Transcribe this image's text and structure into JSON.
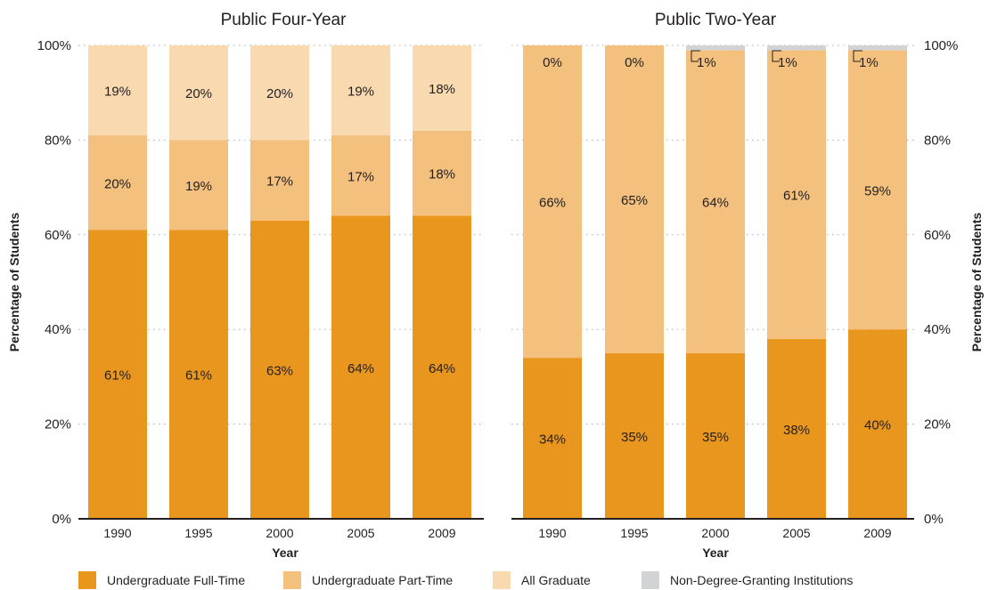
{
  "chart_data": [
    {
      "type": "bar",
      "stacked": true,
      "title": "Public Four-Year",
      "xlabel": "Year",
      "ylabel": "Percentage of Students",
      "ylim": [
        0,
        100
      ],
      "ytick_labels": [
        "0%",
        "20%",
        "40%",
        "60%",
        "80%",
        "100%"
      ],
      "categories": [
        "1990",
        "1995",
        "2000",
        "2005",
        "2009"
      ],
      "grid": true,
      "series": [
        {
          "name": "Undergraduate Full-Time",
          "values": [
            61,
            61,
            63,
            64,
            64
          ],
          "labels": [
            "61%",
            "61%",
            "63%",
            "64%",
            "64%"
          ]
        },
        {
          "name": "Undergraduate Part-Time",
          "values": [
            20,
            19,
            17,
            17,
            18
          ],
          "labels": [
            "20%",
            "19%",
            "17%",
            "17%",
            "18%"
          ]
        },
        {
          "name": "All Graduate",
          "values": [
            19,
            20,
            20,
            19,
            18
          ],
          "labels": [
            "19%",
            "20%",
            "20%",
            "19%",
            "18%"
          ]
        }
      ]
    },
    {
      "type": "bar",
      "stacked": true,
      "title": "Public Two-Year",
      "xlabel": "Year",
      "ylabel": "Percentage of Students",
      "ylim": [
        0,
        100
      ],
      "ytick_labels": [
        "0%",
        "20%",
        "40%",
        "60%",
        "80%",
        "100%"
      ],
      "categories": [
        "1990",
        "1995",
        "2000",
        "2005",
        "2009"
      ],
      "grid": true,
      "series": [
        {
          "name": "Undergraduate Full-Time",
          "values": [
            34,
            35,
            35,
            38,
            40
          ],
          "labels": [
            "34%",
            "35%",
            "35%",
            "38%",
            "40%"
          ]
        },
        {
          "name": "Undergraduate Part-Time",
          "values": [
            66,
            65,
            64,
            61,
            59
          ],
          "labels": [
            "66%",
            "65%",
            "64%",
            "61%",
            "59%"
          ]
        },
        {
          "name": "Non-Degree-Granting Institutions",
          "values": [
            0,
            0,
            1,
            1,
            1
          ],
          "labels": [
            "0%",
            "0%",
            "1%",
            "1%",
            "1%"
          ]
        }
      ]
    }
  ],
  "legend": {
    "placement": "bottom",
    "items": [
      {
        "label": "Undergraduate Full-Time",
        "color": "#e8961e"
      },
      {
        "label": "Undergraduate Part-Time",
        "color": "#f3c07d"
      },
      {
        "label": "All Graduate",
        "color": "#f8d9b0"
      },
      {
        "label": "Non-Degree-Granting Institutions",
        "color": "#d1d3d4"
      }
    ]
  }
}
